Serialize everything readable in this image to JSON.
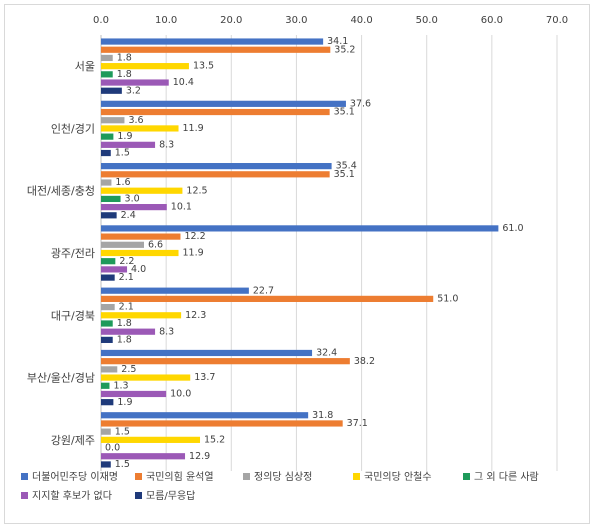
{
  "chart_data": {
    "type": "bar",
    "orientation": "horizontal",
    "title": "",
    "xlabel": "",
    "ylabel": "",
    "xlim": [
      0,
      70
    ],
    "x_ticks": [
      0,
      10,
      20,
      30,
      40,
      50,
      60,
      70
    ],
    "x_tick_labels": [
      "0.0",
      "10.0",
      "20.0",
      "30.0",
      "40.0",
      "50.0",
      "60.0",
      "70.0"
    ],
    "x_axis_position": "top",
    "grid": true,
    "legend_position": "bottom",
    "categories": [
      "서울",
      "인천/경기",
      "대전/세종/충청",
      "광주/전라",
      "대구/경북",
      "부산/울산/경남",
      "강원/제주"
    ],
    "series": [
      {
        "name": "더불어민주당 이재명",
        "color": "#4472c4",
        "values": [
          34.1,
          37.6,
          35.4,
          61.0,
          22.7,
          32.4,
          31.8
        ],
        "labels": [
          "34.1",
          "37.6",
          "35.4",
          "61.0",
          "22.7",
          "32.4",
          "31.8"
        ]
      },
      {
        "name": "국민의힘 윤석열",
        "color": "#ed7d31",
        "values": [
          35.2,
          35.1,
          35.1,
          12.2,
          51.0,
          38.2,
          37.1
        ],
        "labels": [
          "35.2",
          "35.1",
          "35.1",
          "12.2",
          "51.0",
          "38.2",
          "37.1"
        ]
      },
      {
        "name": "정의당 심상정",
        "color": "#a5a5a5",
        "values": [
          1.8,
          3.6,
          1.6,
          6.6,
          2.1,
          2.5,
          1.5
        ],
        "labels": [
          "1.8",
          "3.6",
          "1.6",
          "6.6",
          "2.1",
          "2.5",
          "1.5"
        ]
      },
      {
        "name": "국민의당 안철수",
        "color": "#ffd700",
        "values": [
          13.5,
          11.9,
          12.5,
          11.9,
          12.3,
          13.7,
          15.2
        ],
        "labels": [
          "13.5",
          "11.9",
          "12.5",
          "11.9",
          "12.3",
          "13.7",
          "15.2"
        ]
      },
      {
        "name": "그 외 다른 사람",
        "color": "#1e9a5a",
        "values": [
          1.8,
          1.9,
          3.0,
          2.2,
          1.8,
          1.3,
          0.0
        ],
        "labels": [
          "1.8",
          "1.9",
          "3.0",
          "2.2",
          "1.8",
          "1.3",
          "0.0"
        ]
      },
      {
        "name": "지지할 후보가 없다",
        "color": "#9b59b6",
        "values": [
          10.4,
          8.3,
          10.1,
          4.0,
          8.3,
          10.0,
          12.9
        ],
        "labels": [
          "10.4",
          "8.3",
          "10.1",
          "4.0",
          "8.3",
          "10.0",
          "12.9"
        ]
      },
      {
        "name": "모름/무응답",
        "color": "#1f3a7a",
        "values": [
          3.2,
          1.5,
          2.4,
          2.1,
          1.8,
          1.9,
          1.5
        ],
        "labels": [
          "3.2",
          "1.5",
          "2.4",
          "2.1",
          "1.8",
          "1.9",
          "1.5"
        ]
      }
    ]
  }
}
